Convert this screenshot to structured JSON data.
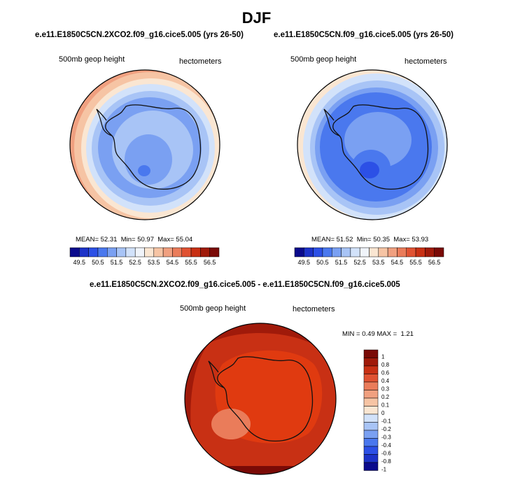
{
  "title": "DJF",
  "panels": [
    {
      "case": "e.e11.E1850C5CN.2XCO2.f09_g16.cice5.005 (yrs 26-50)",
      "variable": "500mb geop height",
      "units": "hectometers",
      "stats": {
        "mean_label": "MEAN=",
        "mean": "52.31",
        "min_label": "Min=",
        "min": "50.97",
        "max_label": "Max=",
        "max": "55.04"
      }
    },
    {
      "case": "e.e11.E1850C5CN.f09_g16.cice5.005 (yrs 26-50)",
      "variable": "500mb geop height",
      "units": "hectometers",
      "stats": {
        "mean_label": "MEAN=",
        "mean": "51.52",
        "min_label": "Min=",
        "min": "50.35",
        "max_label": "Max=",
        "max": "53.93"
      }
    }
  ],
  "top_colorbar": {
    "tick_labels": [
      "49.5",
      "50.5",
      "51.5",
      "52.5",
      "53.5",
      "54.5",
      "55.5",
      "56.5"
    ],
    "colors": [
      "#0a0a8c",
      "#1c32c8",
      "#2c50e6",
      "#4a78ee",
      "#7aa0f2",
      "#a8c4f6",
      "#d2e2fa",
      "#f0f4fa",
      "#fae6d2",
      "#f6c4a4",
      "#f0a080",
      "#ea7c5a",
      "#e05232",
      "#c83014",
      "#a01a0a",
      "#7a0a06"
    ]
  },
  "diff_panel": {
    "title": "e.e11.E1850C5CN.2XCO2.f09_g16.cice5.005 - e.e11.E1850C5CN.f09_g16.cice5.005",
    "variable": "500mb geop height",
    "units": "hectometers",
    "min_label": "MIN =",
    "min": "0.49",
    "max_label": "MAX =",
    "max": "1.21"
  },
  "diff_colorbar": {
    "tick_labels": [
      "1",
      "0.8",
      "0.6",
      "0.4",
      "0.3",
      "0.2",
      "0.1",
      "0",
      "-0.1",
      "-0.2",
      "-0.3",
      "-0.4",
      "-0.6",
      "-0.8",
      "-1"
    ],
    "colors": [
      "#7a0a06",
      "#a01a0a",
      "#c83014",
      "#e05232",
      "#ea7c5a",
      "#f0a080",
      "#f6c4a4",
      "#fae6d2",
      "#d2e2fa",
      "#a8c4f6",
      "#7aa0f2",
      "#4a78ee",
      "#2c50e6",
      "#1c32c8",
      "#0a0a8c"
    ]
  },
  "colors": {
    "map_outline": "#000000",
    "antarctica_outline": "#111111"
  }
}
